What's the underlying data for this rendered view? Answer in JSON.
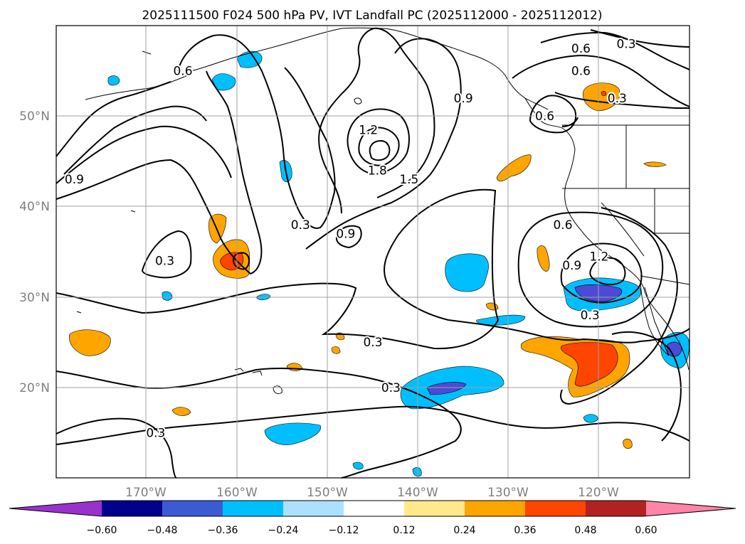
{
  "title": "2025111500 F024 500 hPa PV, IVT Landfall PC (2025112000 - 2025112012)",
  "map": {
    "lon_ticks": [
      "170°W",
      "160°W",
      "150°W",
      "140°W",
      "130°W",
      "120°W"
    ],
    "lat_ticks": [
      "50°N",
      "40°N",
      "30°N",
      "20°N"
    ],
    "lon_range": [
      -180,
      -110
    ],
    "lat_range": [
      10,
      60
    ],
    "grid": true,
    "fill_colors": {
      "strong_negative": "#4b4bd6",
      "negative": "#00bfff",
      "positive": "#ffa500",
      "strong_positive": "#ff4500"
    }
  },
  "contour_labels": [
    {
      "text": "0.3",
      "lon": -153,
      "lat": 38
    },
    {
      "text": "0.3",
      "lon": -168,
      "lat": 34
    },
    {
      "text": "0.3",
      "lon": -145,
      "lat": 25
    },
    {
      "text": "0.3",
      "lon": -143,
      "lat": 20
    },
    {
      "text": "0.3",
      "lon": -169,
      "lat": 15
    },
    {
      "text": "0.3",
      "lon": -118,
      "lat": 52
    },
    {
      "text": "0.3",
      "lon": -117,
      "lat": 58
    },
    {
      "text": "0.3",
      "lon": -121,
      "lat": 28
    },
    {
      "text": "0.6",
      "lon": -166,
      "lat": 55
    },
    {
      "text": "0.6",
      "lon": -122,
      "lat": 57.5
    },
    {
      "text": "0.6",
      "lon": -122,
      "lat": 55
    },
    {
      "text": "0.6",
      "lon": -124,
      "lat": 38
    },
    {
      "text": "0.6",
      "lon": -126,
      "lat": 50
    },
    {
      "text": "0.9",
      "lon": -178,
      "lat": 43
    },
    {
      "text": "0.9",
      "lon": -148,
      "lat": 37
    },
    {
      "text": "0.9",
      "lon": -135,
      "lat": 52
    },
    {
      "text": "0.9",
      "lon": -123,
      "lat": 33.5
    },
    {
      "text": "1.2",
      "lon": -145.5,
      "lat": 48.5
    },
    {
      "text": "1.2",
      "lon": -120,
      "lat": 34.5
    },
    {
      "text": "1.5",
      "lon": -141,
      "lat": 43
    },
    {
      "text": "1.8",
      "lon": -144.5,
      "lat": 44
    }
  ],
  "colorbar": {
    "labels": [
      "−0.60",
      "−0.48",
      "−0.36",
      "−0.24",
      "−0.12",
      "0.12",
      "0.24",
      "0.36",
      "0.48",
      "0.60"
    ],
    "colors": [
      "#9932cc",
      "#00008b",
      "#3b5bd3",
      "#00bfff",
      "#ade0ff",
      "#ffffff",
      "#ffe98a",
      "#ffa500",
      "#ff4500",
      "#b22222",
      "#ff85a8",
      "#ff85a8"
    ]
  }
}
